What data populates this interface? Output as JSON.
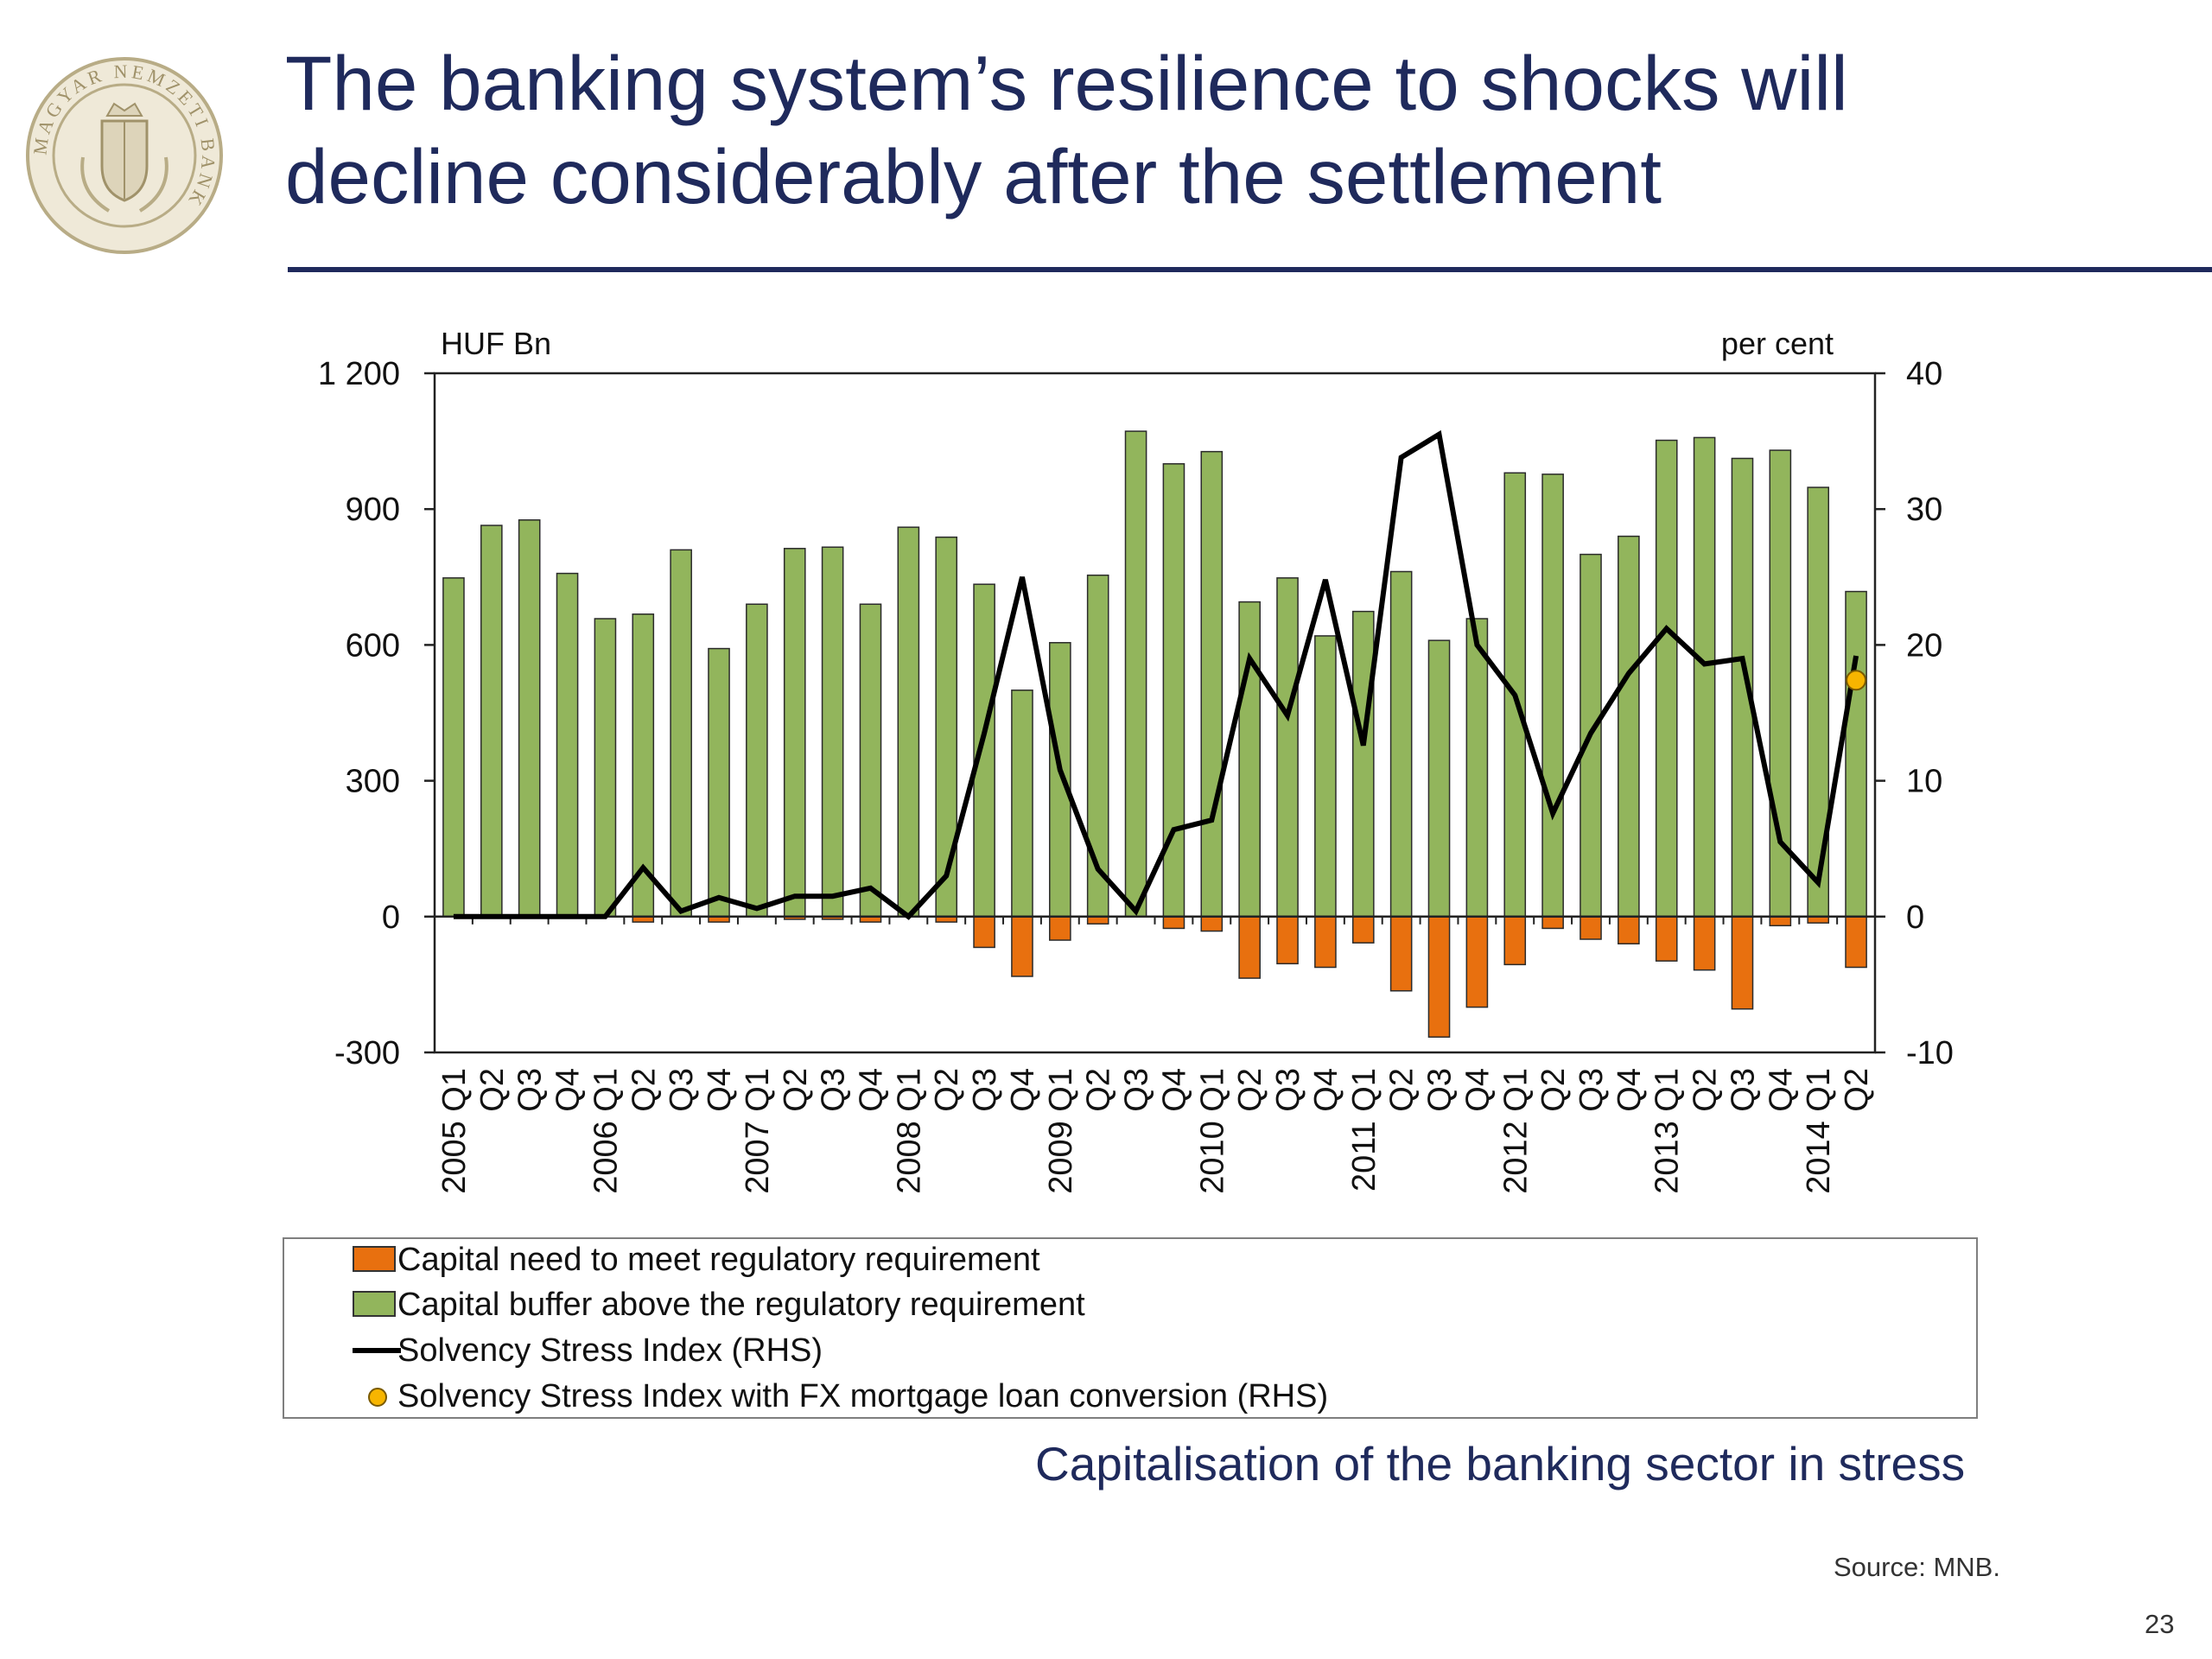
{
  "slide": {
    "title": "The banking system’s resilience to shocks will\ndecline considerably after the settlement",
    "subtitle": "Capitalisation of the banking sector in stress",
    "source": "Source: MNB.",
    "page_number": "23",
    "logo_text": "MAGYAR NEMZETI BANK"
  },
  "legend": {
    "capital_need": "Capital need to meet regulatory requirement",
    "capital_buffer": "Capital buffer above the regulatory requirement",
    "ssi": "Solvency Stress Index (RHS)",
    "ssi_fx": "Solvency Stress Index with FX mortgage loan conversion (RHS)"
  },
  "colors": {
    "title": "#1f2a5c",
    "capital_need": "#e8700f",
    "capital_buffer": "#92b55c",
    "ssi_line": "#000000",
    "ssi_fx_dot": "#f7b500"
  },
  "chart_data": {
    "type": "bar",
    "y_left_unit": "HUF Bn",
    "y_right_unit": "per cent",
    "y_left_range": [
      -300,
      1200
    ],
    "y_left_ticks": [
      "-300",
      "0",
      "300",
      "600",
      "900",
      "1 200"
    ],
    "y_left_tick_values": [
      -300,
      0,
      300,
      600,
      900,
      1200
    ],
    "y_right_range": [
      -10,
      40
    ],
    "y_right_ticks": [
      "-10",
      "0",
      "10",
      "20",
      "30",
      "40"
    ],
    "y_right_tick_values": [
      -10,
      0,
      10,
      20,
      30,
      40
    ],
    "categories": [
      "2005 Q1",
      "Q2",
      "Q3",
      "Q4",
      "2006 Q1",
      "Q2",
      "Q3",
      "Q4",
      "2007 Q1",
      "Q2",
      "Q3",
      "Q4",
      "2008 Q1",
      "Q2",
      "Q3",
      "Q4",
      "2009 Q1",
      "Q2",
      "Q3",
      "Q4",
      "2010 Q1",
      "Q2",
      "Q3",
      "Q4",
      "2011 Q1",
      "Q2",
      "Q3",
      "Q4",
      "2012 Q1",
      "Q2",
      "Q3",
      "Q4",
      "2013 Q1",
      "Q2",
      "Q3",
      "Q4",
      "2014 Q1",
      "Q2"
    ],
    "series": [
      {
        "name": "Capital buffer above the regulatory requirement",
        "axis": "left",
        "values": [
          748,
          864,
          876,
          758,
          658,
          668,
          810,
          592,
          690,
          813,
          816,
          690,
          860,
          838,
          734,
          500,
          605,
          754,
          1072,
          1000,
          1027,
          695,
          748,
          620,
          674,
          762,
          610,
          658,
          980,
          977,
          800,
          840,
          1052,
          1058,
          1012,
          1030,
          948,
          718
        ]
      },
      {
        "name": "Capital need to meet regulatory requirement",
        "axis": "left",
        "values": [
          0,
          0,
          0,
          0,
          0,
          -12,
          0,
          -12,
          0,
          -6,
          -6,
          -12,
          0,
          -12,
          -68,
          -132,
          -52,
          -16,
          0,
          -26,
          -32,
          -136,
          -104,
          -112,
          -58,
          -164,
          -266,
          -200,
          -106,
          -26,
          -50,
          -60,
          -98,
          -118,
          -204,
          -20,
          -14,
          -112
        ]
      },
      {
        "name": "Solvency Stress Index (RHS)",
        "axis": "right",
        "type": "line",
        "values": [
          0,
          0,
          0,
          0,
          0,
          3.6,
          0.4,
          1.4,
          0.6,
          1.5,
          1.5,
          2.1,
          0,
          3.0,
          13.5,
          25.0,
          10.8,
          3.5,
          0.4,
          6.4,
          7.1,
          19.0,
          14.8,
          24.8,
          12.6,
          33.8,
          35.5,
          20.0,
          16.3,
          7.6,
          13.5,
          17.9,
          21.2,
          18.6,
          19.0,
          5.5,
          2.5,
          19.2
        ]
      },
      {
        "name": "Solvency Stress Index with FX mortgage loan conversion (RHS)",
        "axis": "right",
        "type": "scatter",
        "points": [
          {
            "category": "Q2",
            "index": 37,
            "value": 17.4
          }
        ]
      }
    ]
  }
}
